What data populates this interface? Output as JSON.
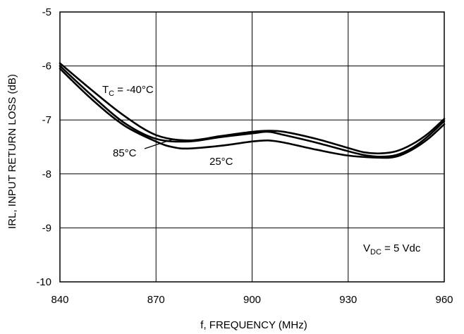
{
  "chart_data": {
    "type": "line",
    "title": "",
    "xlabel": "f, FREQUENCY (MHz)",
    "ylabel": "IRL, INPUT RETURN LOSS (dB)",
    "xlim": [
      840,
      960
    ],
    "ylim": [
      -10,
      -5
    ],
    "xticks": [
      840,
      870,
      900,
      930,
      960
    ],
    "yticks": [
      -5,
      -6,
      -7,
      -8,
      -9,
      -10
    ],
    "grid": true,
    "line_color": "#000000",
    "series": [
      {
        "name": "TC = -40°C",
        "x": [
          840,
          850,
          860,
          870,
          880,
          890,
          900,
          905,
          910,
          920,
          930,
          935,
          940,
          945,
          950,
          955,
          960
        ],
        "y": [
          -5.95,
          -6.45,
          -6.92,
          -7.28,
          -7.38,
          -7.3,
          -7.22,
          -7.2,
          -7.22,
          -7.35,
          -7.52,
          -7.6,
          -7.62,
          -7.58,
          -7.45,
          -7.25,
          -6.98
        ]
      },
      {
        "name": "25°C",
        "x": [
          840,
          850,
          860,
          870,
          875,
          880,
          890,
          900,
          905,
          910,
          920,
          930,
          940,
          945,
          950,
          955,
          960
        ],
        "y": [
          -6.05,
          -6.62,
          -7.1,
          -7.4,
          -7.5,
          -7.53,
          -7.48,
          -7.4,
          -7.38,
          -7.42,
          -7.55,
          -7.66,
          -7.7,
          -7.68,
          -7.55,
          -7.35,
          -7.08
        ]
      },
      {
        "name": "85°C",
        "x": [
          840,
          850,
          860,
          870,
          880,
          890,
          900,
          905,
          910,
          920,
          930,
          935,
          940,
          945,
          950,
          955,
          960
        ],
        "y": [
          -6.0,
          -6.55,
          -7.05,
          -7.35,
          -7.4,
          -7.32,
          -7.25,
          -7.22,
          -7.28,
          -7.42,
          -7.58,
          -7.65,
          -7.68,
          -7.65,
          -7.52,
          -7.3,
          -7.02
        ]
      }
    ],
    "annotations": {
      "tc_main": "T",
      "tc_sub": "C",
      "tc_rest": " = -40°C",
      "label_85": "85°C",
      "label_25": "25°C",
      "vdc_main": "V",
      "vdc_sub": "DC",
      "vdc_rest": " = 5 Vdc"
    }
  }
}
